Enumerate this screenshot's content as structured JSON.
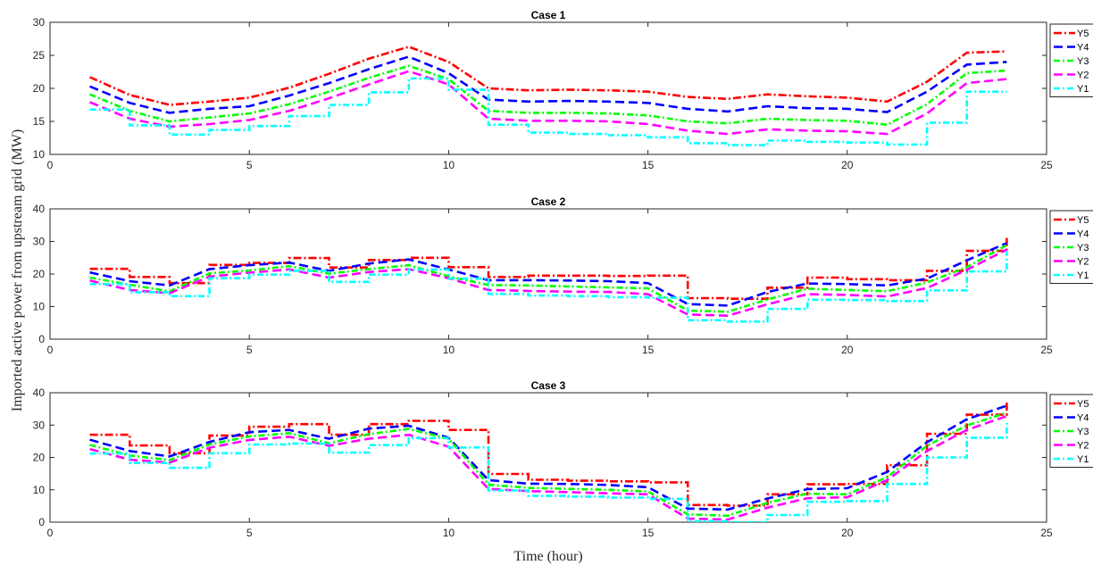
{
  "figure": {
    "ylabel": "Imported active power from upstream grid (MW)",
    "xlabel": "Time (hour)"
  },
  "legend_labels": [
    "Y5",
    "Y4",
    "Y3",
    "Y2",
    "Y1"
  ],
  "colors": {
    "Y5": "#ff0000",
    "Y4": "#0000ff",
    "Y3": "#00ff00",
    "Y2": "#ff00ff",
    "Y1": "#00ffff"
  },
  "chart_data": [
    {
      "type": "line",
      "title": "Case 1",
      "xlim": [
        0,
        25
      ],
      "ylim": [
        10,
        30
      ],
      "xticks": [
        0,
        5,
        10,
        15,
        20,
        25
      ],
      "yticks": [
        10,
        15,
        20,
        25,
        30
      ],
      "legend_position": "right",
      "x": [
        1,
        2,
        3,
        4,
        5,
        6,
        7,
        8,
        9,
        10,
        11,
        12,
        13,
        14,
        15,
        16,
        17,
        18,
        19,
        20,
        21,
        22,
        23,
        24
      ],
      "series": [
        {
          "name": "Y5",
          "step": false,
          "values": [
            21.7,
            19.0,
            17.5,
            18.0,
            18.6,
            20.1,
            22.2,
            24.5,
            26.3,
            24.0,
            20.0,
            19.7,
            19.8,
            19.7,
            19.5,
            18.7,
            18.4,
            19.1,
            18.8,
            18.6,
            18.0,
            21.0,
            25.4,
            25.6
          ]
        },
        {
          "name": "Y4",
          "step": false,
          "values": [
            20.3,
            17.8,
            16.3,
            16.9,
            17.3,
            18.9,
            20.8,
            22.9,
            24.8,
            22.3,
            18.3,
            18.0,
            18.1,
            18.0,
            17.8,
            16.9,
            16.5,
            17.3,
            17.0,
            16.9,
            16.4,
            19.5,
            23.6,
            24.0
          ]
        },
        {
          "name": "Y3",
          "step": false,
          "values": [
            19.1,
            16.6,
            15.0,
            15.6,
            16.2,
            17.6,
            19.5,
            21.6,
            23.4,
            21.4,
            16.6,
            16.3,
            16.3,
            16.2,
            15.9,
            15.0,
            14.7,
            15.4,
            15.2,
            15.1,
            14.5,
            17.6,
            22.3,
            22.7
          ]
        },
        {
          "name": "Y2",
          "step": false,
          "values": [
            17.9,
            15.4,
            14.2,
            14.6,
            15.2,
            16.6,
            18.5,
            20.6,
            22.6,
            20.6,
            15.4,
            15.1,
            15.1,
            15.0,
            14.6,
            13.6,
            13.1,
            13.8,
            13.6,
            13.5,
            13.1,
            16.2,
            20.8,
            21.4
          ]
        },
        {
          "name": "Y1",
          "step": true,
          "values": [
            16.8,
            14.4,
            13.0,
            13.7,
            14.3,
            15.8,
            17.5,
            19.4,
            21.5,
            19.8,
            14.5,
            13.3,
            13.1,
            12.9,
            12.6,
            11.7,
            11.4,
            12.1,
            11.9,
            11.8,
            11.5,
            14.8,
            19.5,
            19.5
          ]
        }
      ]
    },
    {
      "type": "line",
      "title": "Case 2",
      "xlim": [
        0,
        25
      ],
      "ylim": [
        0,
        40
      ],
      "xticks": [
        0,
        5,
        10,
        15,
        20,
        25
      ],
      "yticks": [
        0,
        10,
        20,
        30,
        40
      ],
      "legend_position": "right",
      "x": [
        1,
        2,
        3,
        4,
        5,
        6,
        7,
        8,
        9,
        10,
        11,
        12,
        13,
        14,
        15,
        16,
        17,
        18,
        19,
        20,
        21,
        22,
        23,
        24
      ],
      "series": [
        {
          "name": "Y5",
          "step": true,
          "values": [
            21.6,
            19.1,
            17.2,
            22.8,
            23.4,
            24.9,
            22.0,
            24.3,
            25.0,
            22.1,
            19.1,
            19.5,
            19.5,
            19.4,
            19.5,
            12.6,
            12.4,
            15.8,
            18.9,
            18.4,
            18.1,
            21.0,
            27.1,
            31.5
          ]
        },
        {
          "name": "Y4",
          "step": false,
          "values": [
            20.5,
            17.8,
            16.5,
            21.5,
            22.7,
            23.5,
            21.0,
            23.2,
            24.5,
            21.4,
            18.1,
            18.1,
            18.0,
            17.8,
            17.2,
            10.8,
            10.3,
            14.5,
            17.1,
            16.9,
            16.5,
            18.6,
            24.2,
            29.5
          ]
        },
        {
          "name": "Y3",
          "step": false,
          "values": [
            18.9,
            16.7,
            14.7,
            20.2,
            21.1,
            22.4,
            20.1,
            21.5,
            22.7,
            19.3,
            16.6,
            16.5,
            16.2,
            15.9,
            15.6,
            8.8,
            8.4,
            12.2,
            15.5,
            15.1,
            14.7,
            17.4,
            22.1,
            28.9
          ]
        },
        {
          "name": "Y2",
          "step": false,
          "values": [
            18.0,
            15.1,
            14.1,
            19.2,
            20.4,
            21.4,
            18.9,
            20.6,
            21.5,
            18.7,
            15.1,
            14.8,
            14.6,
            14.5,
            13.8,
            7.6,
            7.2,
            10.7,
            13.8,
            13.6,
            13.1,
            15.7,
            21.3,
            27.5
          ]
        },
        {
          "name": "Y1",
          "step": true,
          "values": [
            16.9,
            14.4,
            13.2,
            18.7,
            19.8,
            21.0,
            17.6,
            19.8,
            21.4,
            18.6,
            13.9,
            13.4,
            13.2,
            12.9,
            12.7,
            5.8,
            5.4,
            9.3,
            12.1,
            12.0,
            11.7,
            15.0,
            20.8,
            27.0
          ]
        }
      ]
    },
    {
      "type": "line",
      "title": "Case 3",
      "xlim": [
        0,
        25
      ],
      "ylim": [
        0,
        40
      ],
      "xticks": [
        0,
        5,
        10,
        15,
        20,
        25
      ],
      "yticks": [
        0,
        10,
        20,
        30,
        40
      ],
      "legend_position": "right",
      "x": [
        1,
        2,
        3,
        4,
        5,
        6,
        7,
        8,
        9,
        10,
        11,
        12,
        13,
        14,
        15,
        16,
        17,
        18,
        19,
        20,
        21,
        22,
        23,
        24
      ],
      "series": [
        {
          "name": "Y5",
          "step": true,
          "values": [
            27.0,
            23.7,
            21.3,
            26.8,
            29.5,
            30.3,
            27.0,
            30.3,
            31.3,
            28.5,
            14.9,
            13.1,
            12.8,
            12.6,
            12.3,
            5.3,
            5.1,
            8.6,
            11.7,
            11.8,
            17.6,
            27.3,
            33.2,
            37.5
          ]
        },
        {
          "name": "Y4",
          "step": false,
          "values": [
            25.5,
            22.0,
            20.3,
            24.8,
            27.8,
            28.5,
            25.8,
            28.9,
            29.8,
            26.1,
            13.0,
            11.9,
            11.8,
            11.5,
            10.8,
            4.2,
            3.9,
            7.3,
            10.2,
            10.5,
            15.5,
            24.7,
            31.8,
            36.0
          ]
        },
        {
          "name": "Y3",
          "step": false,
          "values": [
            23.9,
            20.6,
            19.2,
            24.0,
            26.5,
            27.5,
            24.4,
            27.2,
            28.8,
            25.8,
            11.6,
            10.6,
            10.3,
            10.0,
            9.5,
            2.4,
            2.0,
            6.0,
            8.8,
            8.6,
            13.9,
            23.6,
            29.9,
            33.8
          ]
        },
        {
          "name": "Y2",
          "step": false,
          "values": [
            22.6,
            19.3,
            18.4,
            23.0,
            25.4,
            26.4,
            23.6,
            25.8,
            27.0,
            23.3,
            10.3,
            9.6,
            9.3,
            8.9,
            8.6,
            1.1,
            0.8,
            4.5,
            7.4,
            7.7,
            13.0,
            22.0,
            28.5,
            32.8
          ]
        },
        {
          "name": "Y1",
          "step": true,
          "values": [
            21.2,
            18.3,
            16.8,
            21.3,
            24.0,
            24.3,
            21.5,
            23.8,
            26.0,
            23.1,
            9.8,
            8.1,
            7.9,
            7.6,
            7.2,
            0.3,
            0.0,
            2.2,
            6.3,
            6.5,
            11.8,
            20.0,
            26.1,
            30.7
          ]
        }
      ]
    }
  ]
}
